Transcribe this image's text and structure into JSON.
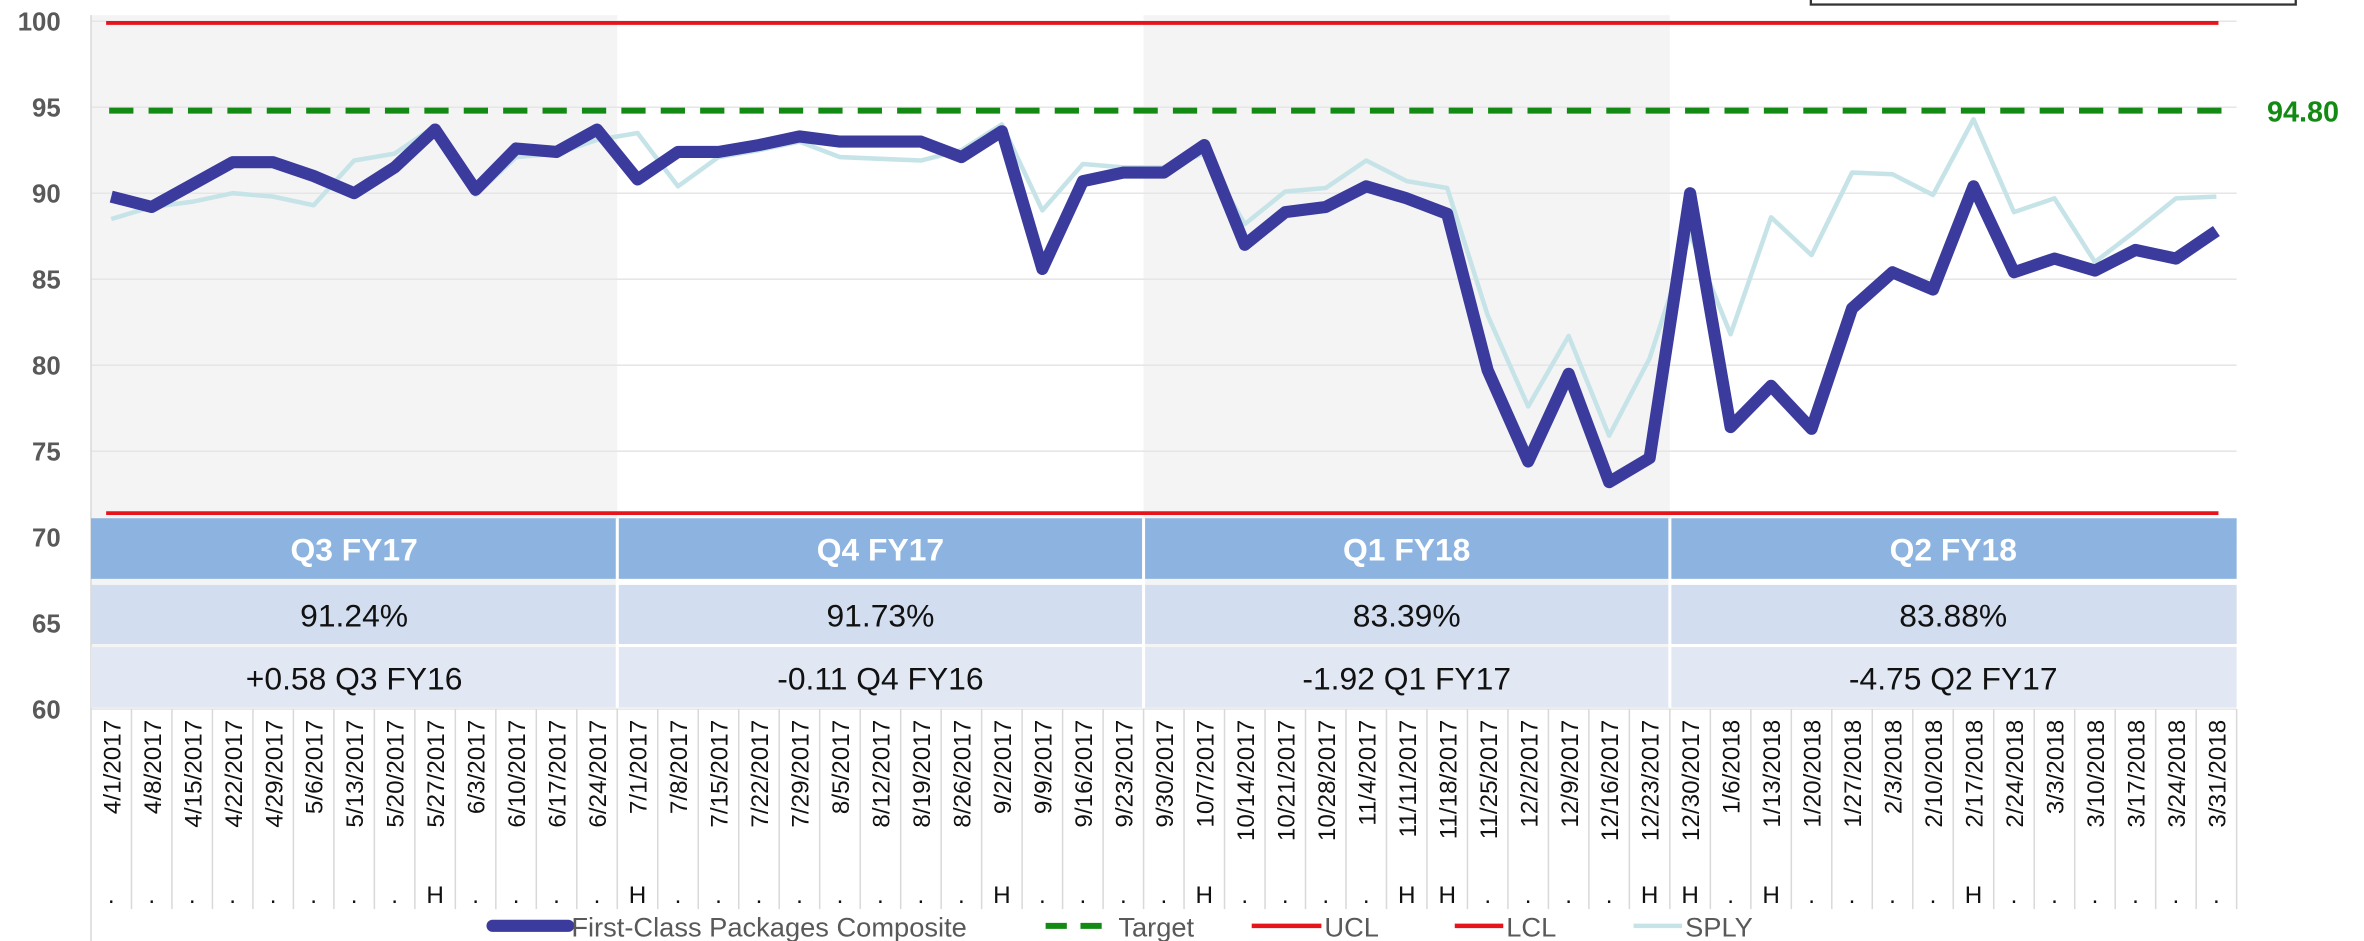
{
  "chart_data": {
    "type": "line",
    "categories": [
      "4/1/2017",
      "4/8/2017",
      "4/15/2017",
      "4/22/2017",
      "4/29/2017",
      "5/6/2017",
      "5/13/2017",
      "5/20/2017",
      "5/27/2017",
      "6/3/2017",
      "6/10/2017",
      "6/17/2017",
      "6/24/2017",
      "7/1/2017",
      "7/8/2017",
      "7/15/2017",
      "7/22/2017",
      "7/29/2017",
      "8/5/2017",
      "8/12/2017",
      "8/19/2017",
      "8/26/2017",
      "9/2/2017",
      "9/9/2017",
      "9/16/2017",
      "9/23/2017",
      "9/30/2017",
      "10/7/2017",
      "10/14/2017",
      "10/21/2017",
      "10/28/2017",
      "11/4/2017",
      "11/11/2017",
      "11/18/2017",
      "11/25/2017",
      "12/2/2017",
      "12/9/2017",
      "12/16/2017",
      "12/23/2017",
      "12/30/2017",
      "1/6/2018",
      "1/13/2018",
      "1/20/2018",
      "1/27/2018",
      "2/3/2018",
      "2/10/2018",
      "2/17/2018",
      "2/24/2018",
      "3/3/2018",
      "3/10/2018",
      "3/17/2018",
      "3/24/2018",
      "3/31/2018"
    ],
    "flags": [
      ".",
      ".",
      ".",
      ".",
      ".",
      ".",
      ".",
      ".",
      "H",
      ".",
      ".",
      ".",
      ".",
      "H",
      ".",
      ".",
      ".",
      ".",
      ".",
      ".",
      ".",
      ".",
      "H",
      ".",
      ".",
      ".",
      ".",
      "H",
      ".",
      ".",
      ".",
      ".",
      "H",
      "H",
      ".",
      ".",
      ".",
      ".",
      "H",
      "H",
      ".",
      "H",
      ".",
      ".",
      ".",
      ".",
      "H",
      ".",
      ".",
      ".",
      ".",
      ".",
      "."
    ],
    "series": [
      {
        "name": "First-Class Packages Composite",
        "color": "#3b3b9e",
        "values": [
          89.8,
          89.2,
          90.5,
          91.8,
          91.8,
          91.0,
          90.0,
          91.5,
          93.7,
          90.2,
          92.6,
          92.4,
          93.7,
          90.8,
          92.4,
          92.4,
          92.8,
          93.3,
          93.0,
          93.0,
          93.0,
          92.1,
          93.6,
          85.6,
          90.7,
          91.2,
          91.2,
          92.8,
          87.0,
          88.9,
          89.2,
          90.4,
          89.7,
          88.8,
          79.7,
          74.4,
          79.5,
          73.2,
          74.6,
          90.0,
          76.4,
          78.8,
          76.3,
          83.3,
          85.4,
          84.4,
          90.4,
          85.4,
          86.2,
          85.5,
          86.7,
          86.2,
          87.8
        ]
      },
      {
        "name": "Target",
        "color": "#138a13",
        "dashed": true,
        "value": 94.8,
        "value_label": "94.80"
      },
      {
        "name": "UCL",
        "color": "#e8141c",
        "value": 99.9
      },
      {
        "name": "LCL",
        "color": "#e8141c",
        "value": 71.4
      },
      {
        "name": "SPLY",
        "color": "#c6e4e8",
        "values": [
          88.5,
          89.2,
          89.5,
          90.0,
          89.8,
          89.3,
          91.9,
          92.3,
          93.9,
          89.9,
          92.1,
          92.3,
          93.1,
          93.5,
          90.4,
          92.1,
          92.5,
          93.0,
          92.1,
          92.0,
          91.9,
          92.5,
          94.0,
          89.0,
          91.7,
          91.5,
          91.5,
          92.3,
          88.2,
          90.1,
          90.3,
          91.9,
          90.7,
          90.3,
          82.9,
          77.6,
          81.7,
          75.9,
          80.4,
          87.6,
          81.8,
          88.6,
          86.4,
          91.2,
          91.1,
          89.9,
          94.3,
          88.9,
          89.7,
          86.0,
          87.8,
          89.7,
          89.8
        ]
      }
    ],
    "quarters": [
      {
        "label": "Q3 FY17",
        "value": "91.24%",
        "change": "+0.58 Q3 FY16"
      },
      {
        "label": "Q4 FY17",
        "value": "91.73%",
        "change": "-0.11 Q4 FY16"
      },
      {
        "label": "Q1 FY18",
        "value": "83.39%",
        "change": "-1.92 Q1 FY17"
      },
      {
        "label": "Q2 FY18",
        "value": "83.88%",
        "change": "-4.75 Q2 FY17"
      }
    ],
    "ylim": [
      60,
      100
    ],
    "yticks": [
      60,
      65,
      70,
      75,
      80,
      85,
      90,
      95,
      100
    ],
    "grid": true
  }
}
